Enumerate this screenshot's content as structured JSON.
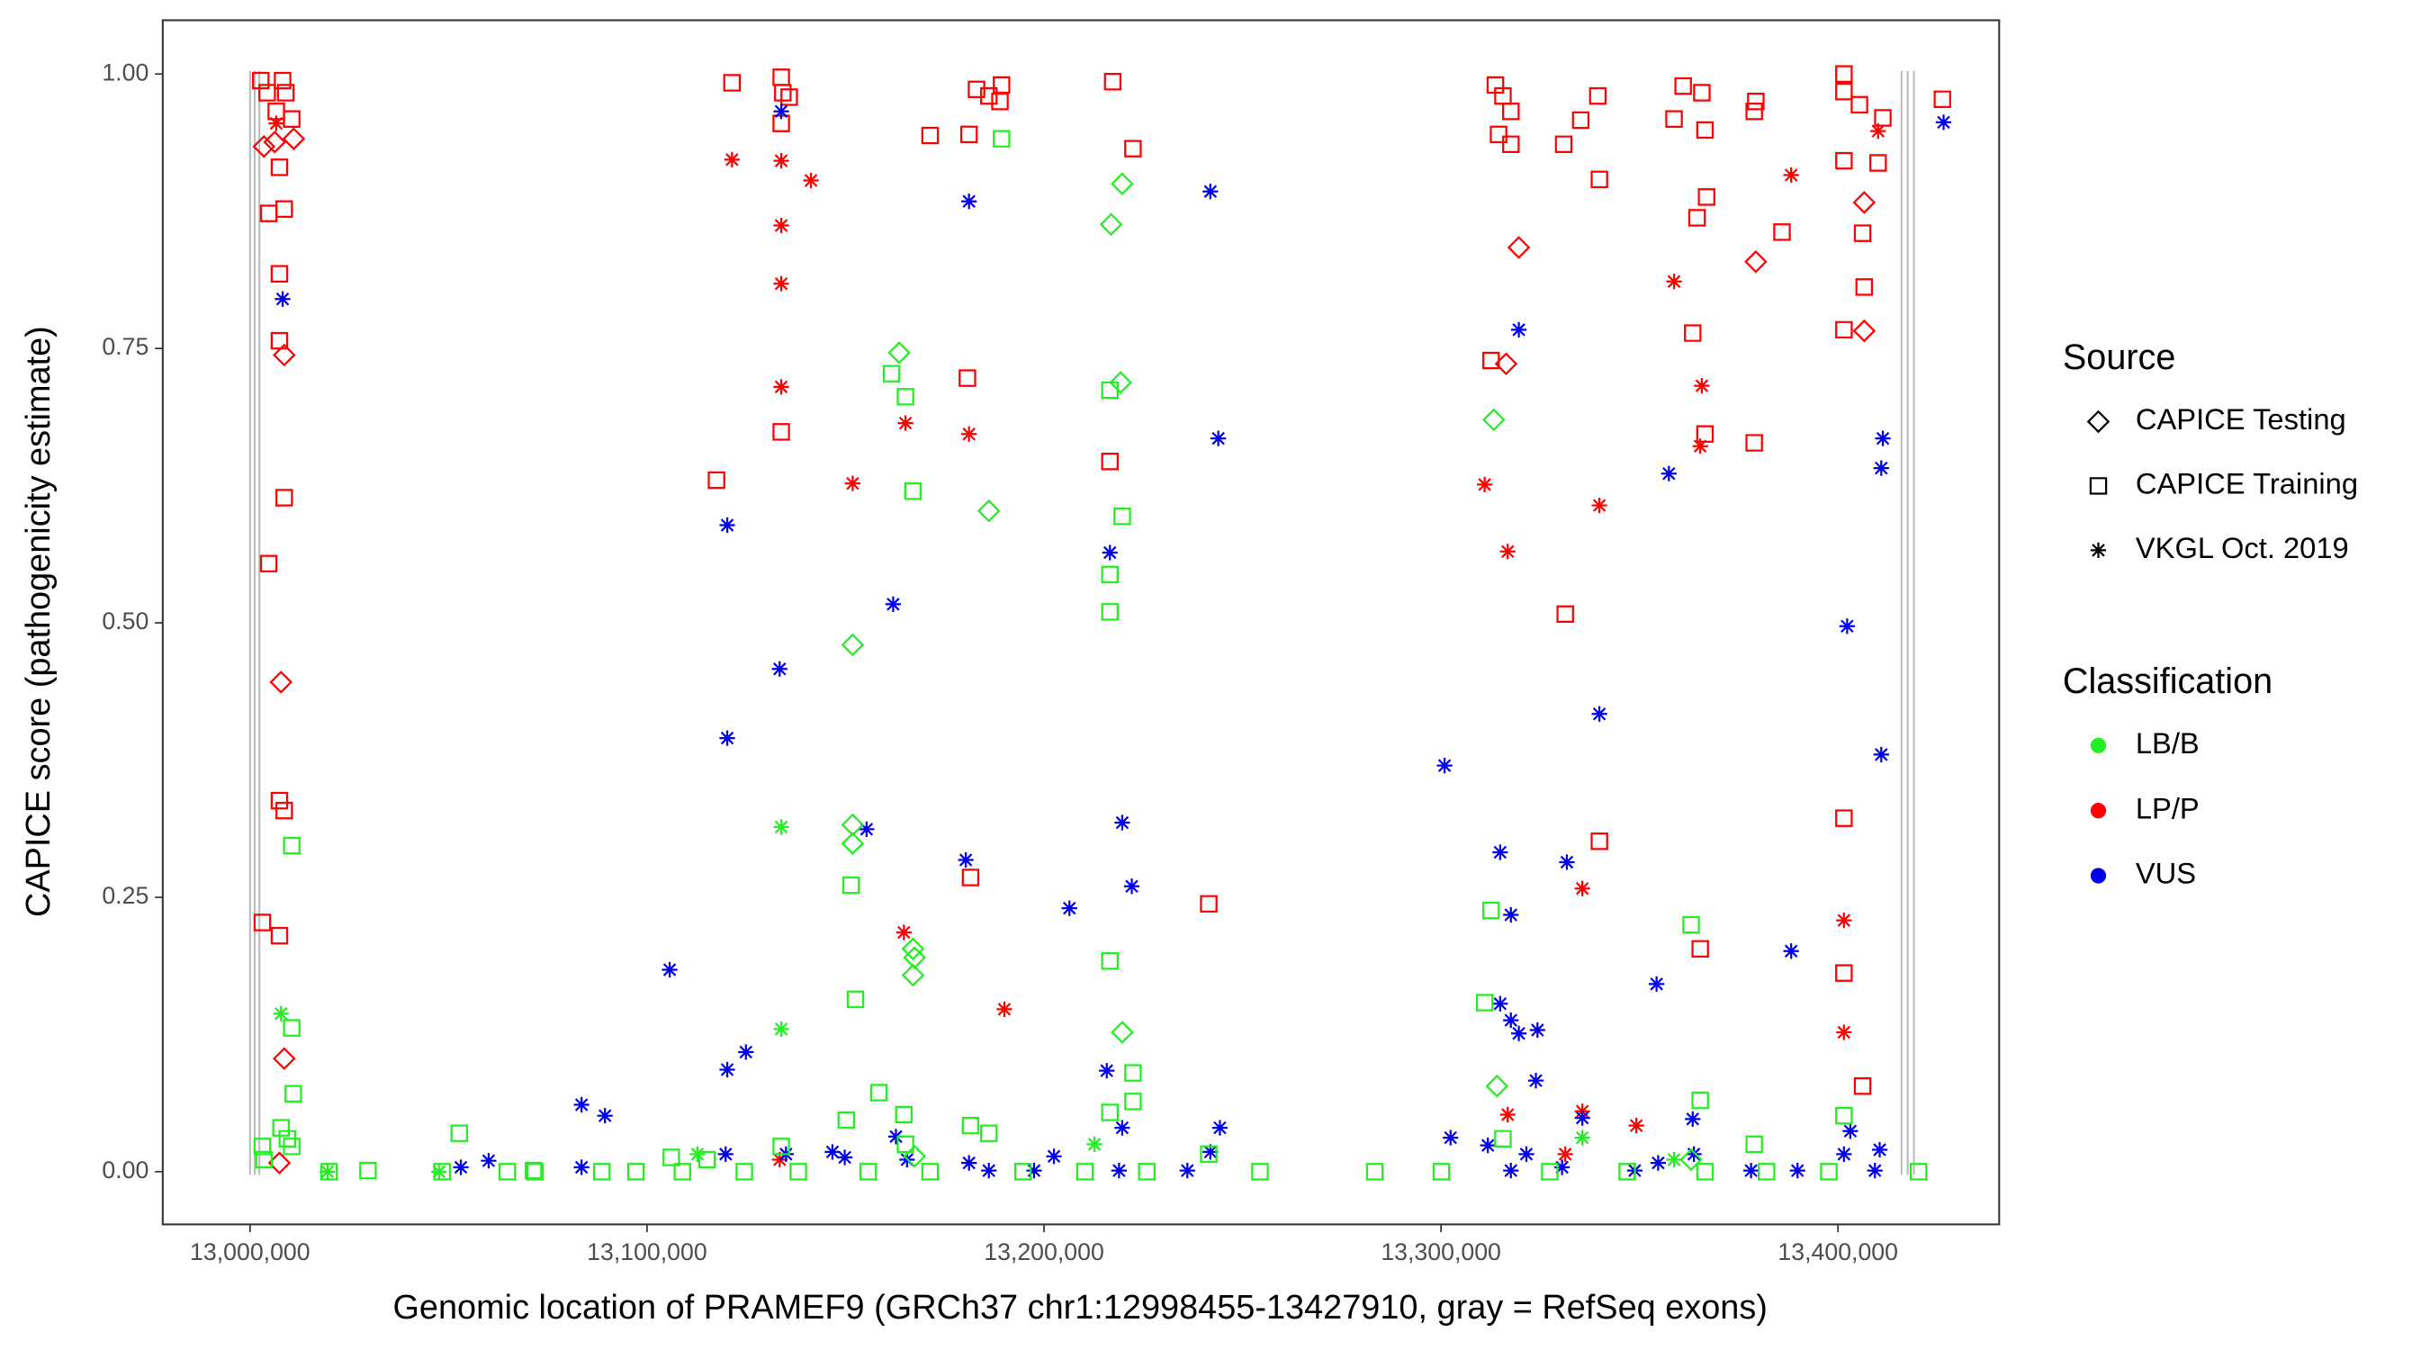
{
  "chart_data": {
    "type": "scatter",
    "x_label": "Genomic location of PRAMEF9 (GRCh37 chr1:12998455-13427910, gray = RefSeq exons)",
    "y_label": "CAPICE score (pathogenicity estimate)",
    "xlim": [
      12978000,
      13440600
    ],
    "ylim": [
      -0.048,
      1.049
    ],
    "xticks": [
      {
        "value": 13000000,
        "label": "13,000,000"
      },
      {
        "value": 13100000,
        "label": "13,100,000"
      },
      {
        "value": 13200000,
        "label": "13,200,000"
      },
      {
        "value": 13300000,
        "label": "13,300,000"
      },
      {
        "value": 13400000,
        "label": "13,400,000"
      }
    ],
    "yticks": [
      {
        "value": 0,
        "label": "0.00"
      },
      0.25,
      {
        "value": 0.5,
        "label": "0.50"
      },
      0.75,
      {
        "value": 1,
        "label": "1.00"
      }
    ],
    "exons": [
      13000000,
      13001171,
      13002341,
      13416000,
      13417561,
      13419122
    ],
    "exon_color": "#bbbbbb",
    "legend_source_title": "Source",
    "sources": [
      {
        "name": "CAPICE Testing",
        "shape": "diamond"
      },
      {
        "name": "CAPICE Training",
        "shape": "square"
      },
      {
        "name": "VKGL Oct. 2019",
        "shape": "asterisk"
      }
    ],
    "legend_class_title": "Classification",
    "classifications": [
      {
        "name": "LB/B",
        "color": "#22ee22"
      },
      {
        "name": "LP/P",
        "color": "#ff0000"
      },
      {
        "name": "VUS",
        "color": "#0000ee"
      }
    ],
    "series": [
      {
        "source": "CAPICE Training",
        "classification": "LP/P",
        "x": [
          13002700,
          13004300,
          13008200,
          13009000,
          13006600,
          13010500,
          13007400,
          13004700,
          13008600,
          13007400,
          13007400,
          13008600,
          13004700,
          13007400,
          13008600,
          13003100,
          13007400,
          13121400,
          13117500,
          13133800,
          13134200,
          13135800,
          13133800,
          13133800,
          13171300,
          13183000,
          13186100,
          13189300,
          13188900,
          13181100,
          13180700,
          13181500,
          13217300,
          13222400,
          13216600,
          13241500,
          13313700,
          13315600,
          13317600,
          13314500,
          13317600,
          13312600,
          13330900,
          13335200,
          13339500,
          13339900,
          13331300,
          13339900,
          13361000,
          13365700,
          13358700,
          13366500,
          13366900,
          13364500,
          13363400,
          13366500,
          13365300,
          13379300,
          13378900,
          13385900,
          13378900,
          13401500,
          13401500,
          13405400,
          13411300,
          13410100,
          13401500,
          13406200,
          13406600,
          13401500,
          13401500,
          13401500,
          13406200,
          13426300
        ],
        "y": [
          0.994,
          0.983,
          0.994,
          0.983,
          0.966,
          0.959,
          0.915,
          0.873,
          0.877,
          0.818,
          0.757,
          0.614,
          0.554,
          0.338,
          0.329,
          0.227,
          0.215,
          0.992,
          0.63,
          0.997,
          0.983,
          0.979,
          0.955,
          0.674,
          0.944,
          0.986,
          0.98,
          0.99,
          0.975,
          0.945,
          0.723,
          0.268,
          0.993,
          0.932,
          0.647,
          0.244,
          0.99,
          0.98,
          0.966,
          0.945,
          0.936,
          0.739,
          0.936,
          0.958,
          0.98,
          0.904,
          0.508,
          0.301,
          0.989,
          0.983,
          0.959,
          0.949,
          0.888,
          0.869,
          0.764,
          0.672,
          0.203,
          0.975,
          0.966,
          0.856,
          0.664,
          1.0,
          0.984,
          0.972,
          0.96,
          0.919,
          0.921,
          0.855,
          0.806,
          0.767,
          0.322,
          0.181,
          0.078,
          0.977
        ]
      },
      {
        "source": "CAPICE Testing",
        "classification": "LP/P",
        "x": [
          13003500,
          13006200,
          13011000,
          13008600,
          13007800,
          13008600,
          13007400,
          13319600,
          13316400,
          13379300,
          13406600,
          13406600
        ],
        "y": [
          0.934,
          0.938,
          0.941,
          0.744,
          0.446,
          0.103,
          0.008,
          0.842,
          0.736,
          0.829,
          0.883,
          0.766
        ]
      },
      {
        "source": "VKGL Oct. 2019",
        "classification": "LP/P",
        "x": [
          13006600,
          13121400,
          13133800,
          13133800,
          13133800,
          13141300,
          13133800,
          13151800,
          13165100,
          13164700,
          13190000,
          13181100,
          13311000,
          13316800,
          13316800,
          13339900,
          13335600,
          13349200,
          13335600,
          13358700,
          13365700,
          13365300,
          13388200,
          13401500,
          13401500,
          13410100,
          13331300,
          13133400
        ],
        "y": [
          0.955,
          0.922,
          0.921,
          0.862,
          0.809,
          0.903,
          0.715,
          0.627,
          0.682,
          0.218,
          0.148,
          0.672,
          0.626,
          0.565,
          0.052,
          0.607,
          0.258,
          0.042,
          0.055,
          0.811,
          0.716,
          0.661,
          0.908,
          0.229,
          0.127,
          0.948,
          0.016,
          0.011
        ]
      },
      {
        "source": "VKGL Oct. 2019",
        "classification": "VUS",
        "x": [
          13008200,
          13133800,
          13120200,
          13133400,
          13120200,
          13105700,
          13120200,
          13124900,
          13083500,
          13089400,
          13181100,
          13162000,
          13155300,
          13180300,
          13206400,
          13216600,
          13219700,
          13222100,
          13215800,
          13241900,
          13243900,
          13319600,
          13300900,
          13314900,
          13317600,
          13314900,
          13317600,
          13324300,
          13319600,
          13323900,
          13339900,
          13331700,
          13354300,
          13357400,
          13302400,
          13363400,
          13388200,
          13402300,
          13410900,
          13410900,
          13411300,
          13426600,
          13053100,
          13060100,
          13083500,
          13119800,
          13135000,
          13146700,
          13149800,
          13162700,
          13165500,
          13181100,
          13186100,
          13197500,
          13202500,
          13218900,
          13219700,
          13236100,
          13241900,
          13244300,
          13311800,
          13317600,
          13321500,
          13330500,
          13335600,
          13348800,
          13354700,
          13363700,
          13378100,
          13389800,
          13401500,
          13403100,
          13410500,
          13409300
        ],
        "y": [
          0.795,
          0.966,
          0.589,
          0.458,
          0.395,
          0.184,
          0.093,
          0.109,
          0.061,
          0.051,
          0.884,
          0.517,
          0.312,
          0.284,
          0.24,
          0.564,
          0.318,
          0.26,
          0.092,
          0.893,
          0.668,
          0.767,
          0.37,
          0.291,
          0.234,
          0.153,
          0.138,
          0.129,
          0.126,
          0.083,
          0.417,
          0.282,
          0.171,
          0.636,
          0.031,
          0.048,
          0.201,
          0.497,
          0.641,
          0.38,
          0.668,
          0.956,
          0.004,
          0.01,
          0.004,
          0.016,
          0.016,
          0.018,
          0.013,
          0.032,
          0.011,
          0.008,
          0.001,
          0.001,
          0.014,
          0.001,
          0.04,
          0.001,
          0.018,
          0.04,
          0.024,
          0.001,
          0.016,
          0.004,
          0.049,
          0.001,
          0.008,
          0.016,
          0.001,
          0.001,
          0.016,
          0.037,
          0.02,
          0.001
        ]
      },
      {
        "source": "CAPICE Training",
        "classification": "LB/B",
        "x": [
          13003100,
          13003500,
          13007800,
          13009400,
          13010500,
          13010500,
          13010900,
          13010500,
          13029700,
          13052700,
          13071400,
          13097200,
          13106100,
          13115100,
          13133800,
          13151400,
          13152500,
          13150200,
          13158400,
          13164700,
          13165100,
          13161600,
          13165100,
          13167000,
          13189300,
          13181500,
          13186100,
          13216600,
          13216600,
          13216600,
          13216600,
          13219700,
          13222400,
          13216600,
          13222400,
          13241500,
          13254400,
          13283300,
          13312600,
          13311000,
          13315600,
          13363000,
          13365300,
          13378900,
          13401500,
          13420300,
          13019900,
          13048400,
          13064800,
          13071800,
          13088600,
          13108900,
          13124500,
          13138100,
          13155700,
          13171300,
          13194700,
          13210300,
          13225900,
          13300100,
          13327400,
          13346900,
          13366500,
          13382000,
          13397700
        ],
        "y": [
          0.023,
          0.011,
          0.04,
          0.03,
          0.297,
          0.131,
          0.071,
          0.023,
          0.001,
          0.035,
          0.001,
          0.0,
          0.013,
          0.011,
          0.023,
          0.261,
          0.157,
          0.047,
          0.072,
          0.052,
          0.025,
          0.727,
          0.706,
          0.62,
          0.941,
          0.042,
          0.035,
          0.51,
          0.544,
          0.712,
          0.192,
          0.597,
          0.09,
          0.054,
          0.064,
          0.016,
          0.0,
          0.0,
          0.238,
          0.154,
          0.03,
          0.225,
          0.065,
          0.025,
          0.051,
          0.0,
          0.0,
          0.0,
          0.0,
          0.0,
          0.0,
          0.0,
          0.0,
          0.0,
          0.0,
          0.0,
          0.0,
          0.0,
          0.0,
          0.0,
          0.0,
          0.0,
          0.0,
          0.0,
          0.0
        ]
      },
      {
        "source": "CAPICE Testing",
        "classification": "LB/B",
        "x": [
          13219700,
          13216900,
          13219300,
          13163500,
          13186100,
          13151800,
          13151800,
          13151800,
          13167000,
          13167400,
          13167000,
          13219700,
          13313300,
          13314100,
          13167400,
          13363000
        ],
        "y": [
          0.9,
          0.863,
          0.719,
          0.746,
          0.602,
          0.48,
          0.316,
          0.299,
          0.203,
          0.195,
          0.179,
          0.127,
          0.685,
          0.078,
          0.014,
          0.011
        ]
      },
      {
        "source": "VKGL Oct. 2019",
        "classification": "LB/B",
        "x": [
          13007800,
          13133800,
          13133800,
          13019500,
          13047600,
          13112700,
          13212700,
          13335600,
          13358700
        ],
        "y": [
          0.144,
          0.314,
          0.13,
          0.0,
          0.0,
          0.016,
          0.025,
          0.031,
          0.011
        ]
      }
    ]
  }
}
